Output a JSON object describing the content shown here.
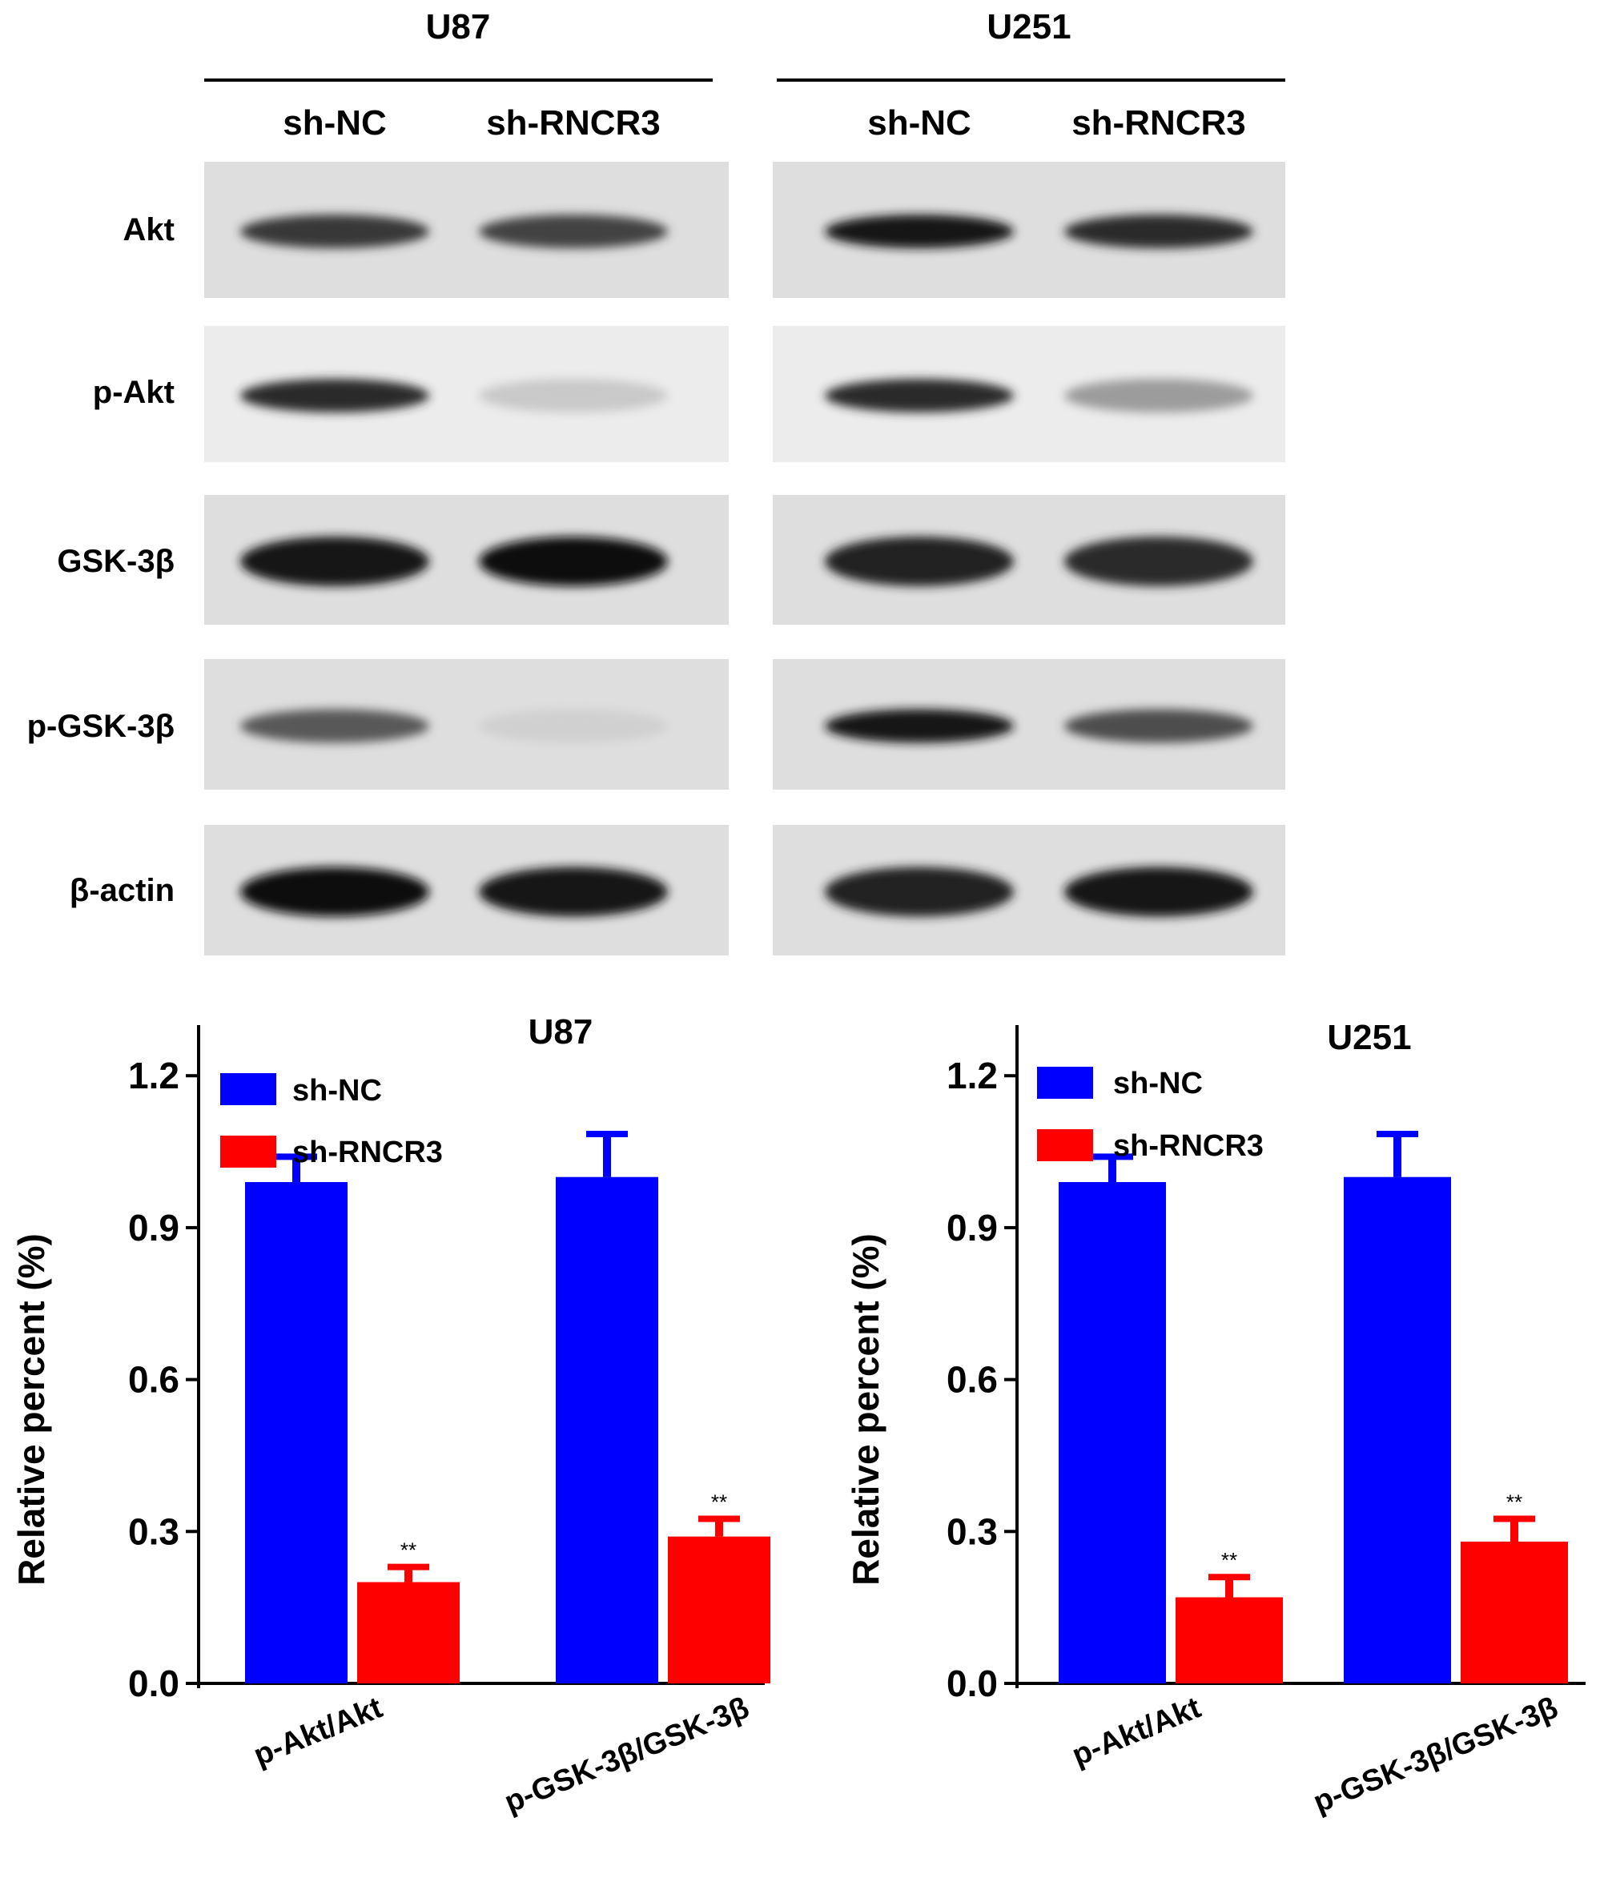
{
  "blot": {
    "cell_lines": [
      "U87",
      "U251"
    ],
    "lane_labels": [
      "sh-NC",
      "sh-RNCR3"
    ],
    "rows": [
      {
        "label": "Akt",
        "intensity": {
          "U87": [
            0.8,
            0.75
          ],
          "U251": [
            0.95,
            0.85
          ]
        }
      },
      {
        "label": "p-Akt",
        "intensity": {
          "U87": [
            0.85,
            0.15
          ],
          "U251": [
            0.85,
            0.35
          ]
        }
      },
      {
        "label": "GSK-3β",
        "intensity": {
          "U87": [
            0.95,
            0.98
          ],
          "U251": [
            0.9,
            0.85
          ]
        }
      },
      {
        "label": "p-GSK-3β",
        "intensity": {
          "U87": [
            0.65,
            0.12
          ],
          "U251": [
            0.95,
            0.7
          ]
        }
      },
      {
        "label": "β-actin",
        "intensity": {
          "U87": [
            1.0,
            0.95
          ],
          "U251": [
            0.9,
            0.95
          ]
        }
      }
    ]
  },
  "chart_data": [
    {
      "type": "bar",
      "title": "U87",
      "ylabel": "Relative percent (%)",
      "categories": [
        "p-Akt/Akt",
        "p-GSK-3β/GSK-3β"
      ],
      "ylim": [
        0,
        1.3
      ],
      "yticks": [
        "0.0",
        "0.3",
        "0.6",
        "0.9",
        "1.2"
      ],
      "legend_position": "top-left",
      "series": [
        {
          "name": "sh-NC",
          "color": "#0000ff",
          "values": [
            0.99,
            1.0
          ],
          "errors": [
            0.05,
            0.085
          ]
        },
        {
          "name": "sh-RNCR3",
          "color": "#ff0000",
          "values": [
            0.2,
            0.29
          ],
          "errors": [
            0.03,
            0.035
          ],
          "annotations": [
            "**",
            "**"
          ]
        }
      ]
    },
    {
      "type": "bar",
      "title": "U251",
      "ylabel": "Relative percent (%)",
      "categories": [
        "p-Akt/Akt",
        "p-GSK-3β/GSK-3β"
      ],
      "ylim": [
        0,
        1.3
      ],
      "yticks": [
        "0.0",
        "0.3",
        "0.6",
        "0.9",
        "1.2"
      ],
      "legend_position": "top-left",
      "series": [
        {
          "name": "sh-NC",
          "color": "#0000ff",
          "values": [
            0.99,
            1.0
          ],
          "errors": [
            0.05,
            0.085
          ]
        },
        {
          "name": "sh-RNCR3",
          "color": "#ff0000",
          "values": [
            0.17,
            0.28
          ],
          "errors": [
            0.04,
            0.045
          ],
          "annotations": [
            "**",
            "**"
          ]
        }
      ]
    }
  ]
}
